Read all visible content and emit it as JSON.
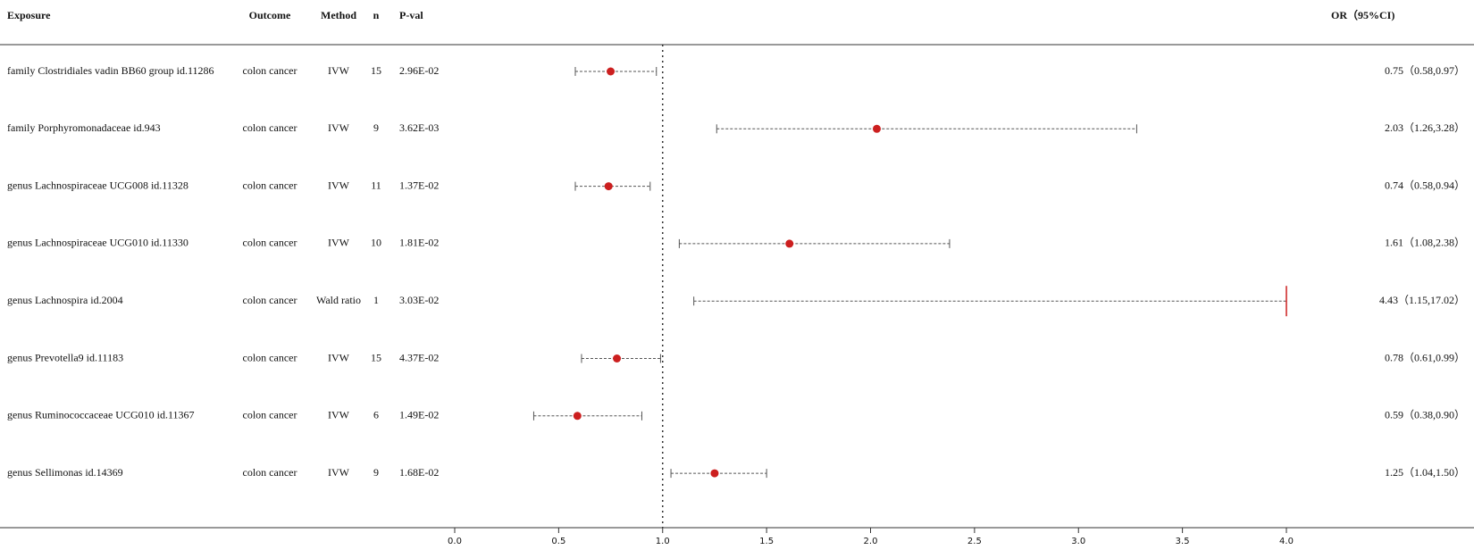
{
  "chart_data": {
    "type": "forest",
    "columns": [
      "Exposure",
      "Outcome",
      "Method",
      "n",
      "P-val",
      "OR（95%CI)"
    ],
    "rows": [
      {
        "exposure": "family Clostridiales vadin BB60 group id.11286",
        "outcome": "colon cancer",
        "method": "IVW",
        "n": "15",
        "pval": "2.96E-02",
        "or": 0.75,
        "lo": 0.58,
        "hi": 0.97,
        "or_label": "0.75（0.58,0.97）"
      },
      {
        "exposure": "family Porphyromonadaceae id.943",
        "outcome": "colon cancer",
        "method": "IVW",
        "n": "9",
        "pval": "3.62E-03",
        "or": 2.03,
        "lo": 1.26,
        "hi": 3.28,
        "or_label": "2.03（1.26,3.28）"
      },
      {
        "exposure": "genus Lachnospiraceae UCG008 id.11328",
        "outcome": "colon cancer",
        "method": "IVW",
        "n": "11",
        "pval": "1.37E-02",
        "or": 0.74,
        "lo": 0.58,
        "hi": 0.94,
        "or_label": "0.74（0.58,0.94）"
      },
      {
        "exposure": "genus Lachnospiraceae UCG010 id.11330",
        "outcome": "colon cancer",
        "method": "IVW",
        "n": "10",
        "pval": "1.81E-02",
        "or": 1.61,
        "lo": 1.08,
        "hi": 2.38,
        "or_label": "1.61（1.08,2.38）"
      },
      {
        "exposure": "genus Lachnospira id.2004",
        "outcome": "colon cancer",
        "method": "Wald ratio",
        "n": "1",
        "pval": "3.03E-02",
        "or": 4.43,
        "lo": 1.15,
        "hi": 17.02,
        "or_label": "4.43（1.15,17.02）"
      },
      {
        "exposure": "genus Prevotella9 id.11183",
        "outcome": "colon cancer",
        "method": "IVW",
        "n": "15",
        "pval": "4.37E-02",
        "or": 0.78,
        "lo": 0.61,
        "hi": 0.99,
        "or_label": "0.78（0.61,0.99）"
      },
      {
        "exposure": "genus Ruminococcaceae UCG010 id.11367",
        "outcome": "colon cancer",
        "method": "IVW",
        "n": "6",
        "pval": "1.49E-02",
        "or": 0.59,
        "lo": 0.38,
        "hi": 0.9,
        "or_label": "0.59（0.38,0.90）"
      },
      {
        "exposure": "genus Sellimonas id.14369",
        "outcome": "colon cancer",
        "method": "IVW",
        "n": "9",
        "pval": "1.68E-02",
        "or": 1.25,
        "lo": 1.04,
        "hi": 1.5,
        "or_label": "1.25（1.04,1.50）"
      }
    ],
    "xlim": [
      0,
      4
    ],
    "xticks": [
      {
        "value": 0,
        "label": "0.0"
      },
      {
        "value": 0.5,
        "label": "0.5"
      },
      {
        "value": 1,
        "label": "1.0"
      },
      {
        "value": 1.5,
        "label": "1.5"
      },
      {
        "value": 2,
        "label": "2.0"
      },
      {
        "value": 2.5,
        "label": "2.5"
      },
      {
        "value": 3,
        "label": "3.0"
      },
      {
        "value": 3.5,
        "label": "3.5"
      },
      {
        "value": 4,
        "label": "4.0"
      }
    ],
    "ref_line": 1,
    "point_color": "#cc1f1f"
  }
}
